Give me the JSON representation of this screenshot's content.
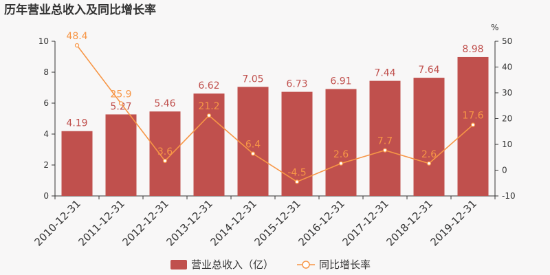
{
  "chart_data": {
    "type": "bar",
    "title": "历年营业总收入及同比增长率",
    "categories": [
      "2010-12-31",
      "2011-12-31",
      "2012-12-31",
      "2013-12-31",
      "2014-12-31",
      "2015-12-31",
      "2016-12-31",
      "2017-12-31",
      "2018-12-31",
      "2019-12-31"
    ],
    "series": [
      {
        "name": "营业总收入（亿）",
        "type": "bar",
        "axis": "left",
        "color": "#c0504d",
        "values": [
          4.19,
          5.27,
          5.46,
          6.62,
          7.05,
          6.73,
          6.91,
          7.44,
          7.64,
          8.98
        ],
        "labels": [
          "4.19",
          "5.27",
          "5.46",
          "6.62",
          "7.05",
          "6.73",
          "6.91",
          "7.44",
          "7.64",
          "8.98"
        ]
      },
      {
        "name": "同比增长率",
        "type": "line",
        "axis": "right",
        "color": "#f79646",
        "values": [
          48.4,
          25.9,
          3.6,
          21.2,
          6.4,
          -4.5,
          2.6,
          7.7,
          2.6,
          17.6
        ],
        "labels": [
          "48.4",
          "25.9",
          "3.6",
          "21.2",
          "6.4",
          "-4.5",
          "2.6",
          "7.7",
          "2.6",
          "17.6"
        ]
      }
    ],
    "y_left": {
      "ylim": [
        0,
        10
      ],
      "ticks": [
        "0",
        "2",
        "4",
        "6",
        "8",
        "10"
      ]
    },
    "y_right": {
      "ylim": [
        -10,
        50
      ],
      "ticks": [
        "-10",
        "0",
        "10",
        "20",
        "30",
        "40",
        "50"
      ],
      "unit": "%"
    },
    "grid": false,
    "legend": "bottom-center"
  }
}
